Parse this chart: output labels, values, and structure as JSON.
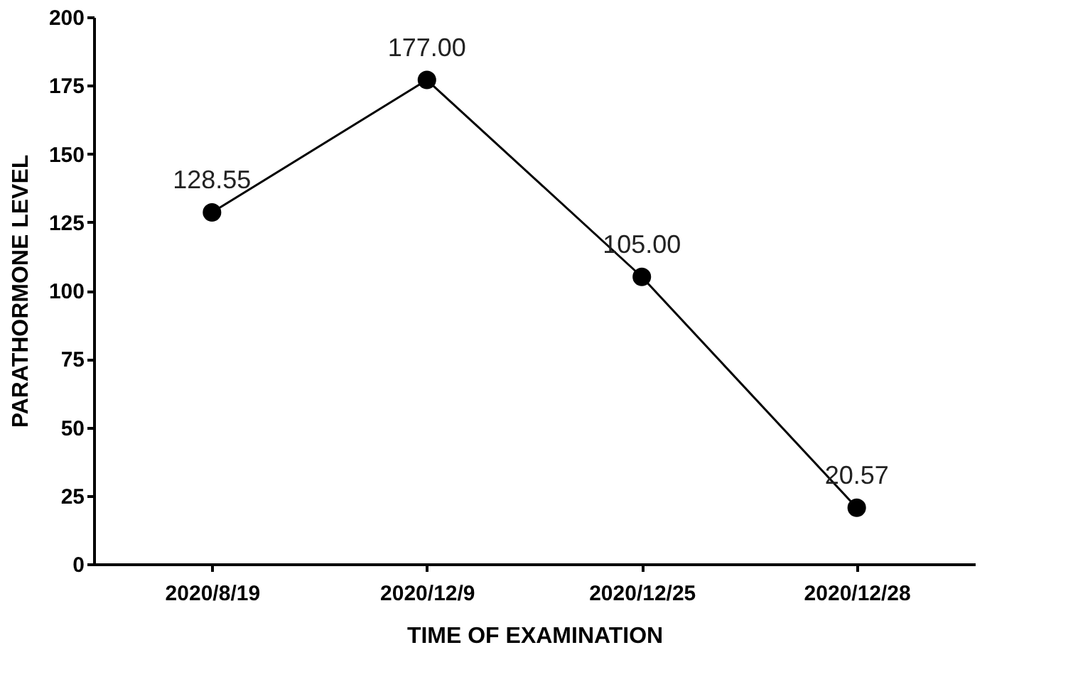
{
  "chart_data": {
    "type": "line",
    "xlabel": "TIME OF EXAMINATION",
    "ylabel": "PARATHORMONE LEVEL",
    "categories": [
      "2020/8/19",
      "2020/12/9",
      "2020/12/25",
      "2020/12/28"
    ],
    "series": [
      {
        "color": "#000000",
        "values": [
          128.55,
          177.0,
          105.0,
          20.57
        ],
        "value_labels": [
          "128.55",
          "177.00",
          "105.00",
          "20.57"
        ]
      }
    ],
    "ylim": [
      0,
      200
    ],
    "yticks": [
      0,
      25,
      50,
      75,
      100,
      125,
      150,
      175,
      200
    ],
    "grid": false,
    "marker": "circle",
    "line_style": "solid"
  }
}
